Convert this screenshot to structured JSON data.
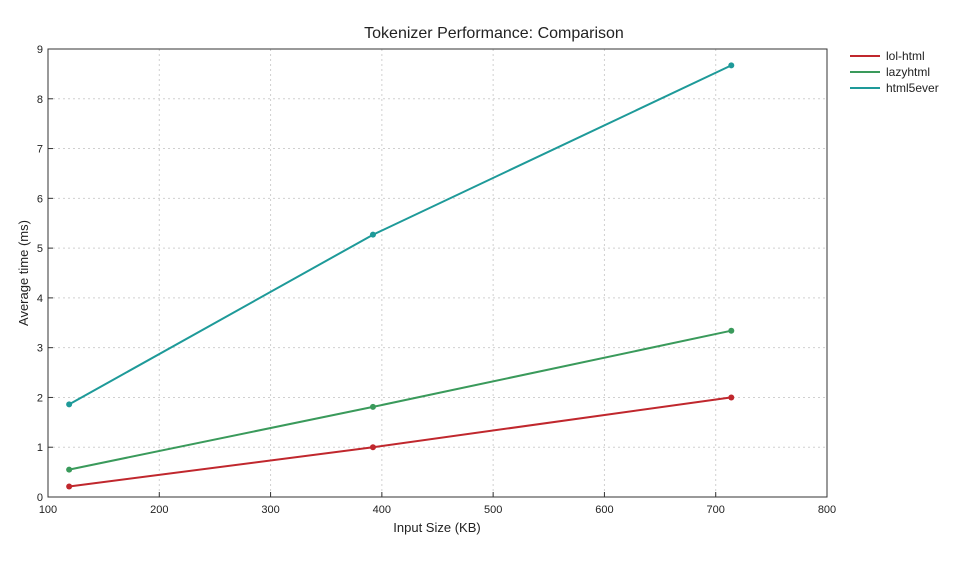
{
  "chart_data": {
    "type": "line",
    "title": "Tokenizer Performance: Comparison",
    "xlabel": "Input Size (KB)",
    "ylabel": "Average time (ms)",
    "xlim": [
      100,
      800
    ],
    "ylim": [
      0,
      9
    ],
    "xticks": [
      100,
      200,
      300,
      400,
      500,
      600,
      700,
      800
    ],
    "yticks": [
      0,
      1,
      2,
      3,
      4,
      5,
      6,
      7,
      8,
      9
    ],
    "grid": true,
    "legend_position": "top-right",
    "x": [
      119,
      392,
      714
    ],
    "series": [
      {
        "name": "lol-html",
        "color": "#c0272d",
        "values": [
          0.21,
          1.0,
          2.0
        ]
      },
      {
        "name": "lazyhtml",
        "color": "#3a9a5b",
        "values": [
          0.55,
          1.81,
          3.34
        ]
      },
      {
        "name": "html5ever",
        "color": "#1e9a99",
        "values": [
          1.86,
          5.27,
          8.67
        ]
      }
    ]
  }
}
